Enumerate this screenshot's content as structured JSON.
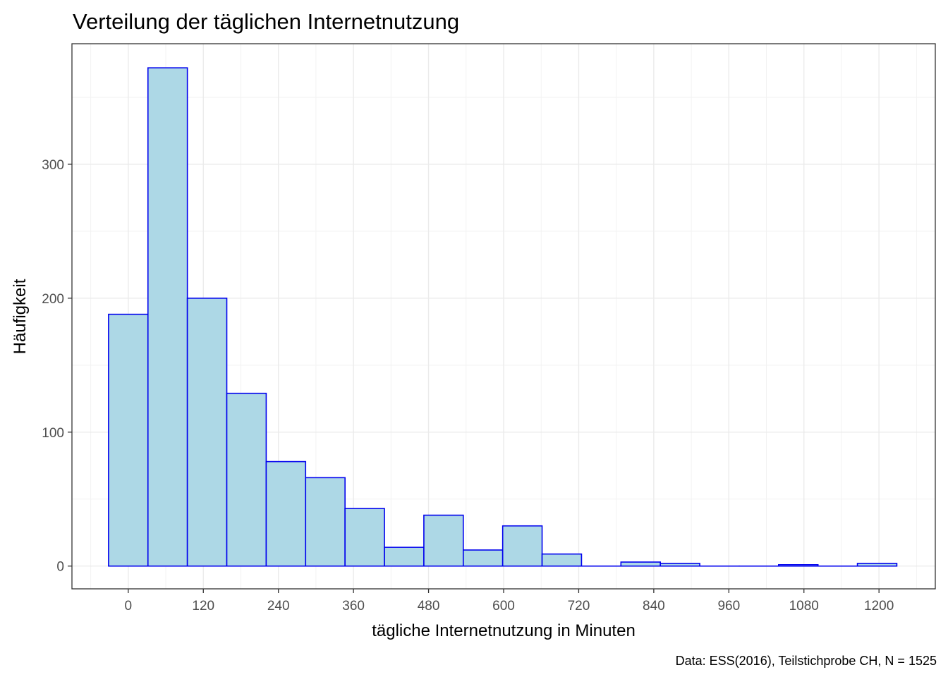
{
  "chart_data": {
    "type": "bar",
    "title": "Verteilung der täglichen Internetnutzung",
    "xlabel": "tägliche Internetnutzung in Minuten",
    "ylabel": "Häufigkeit",
    "caption": "Data: ESS(2016), Teilstichprobe CH, N = 1525",
    "bin_width": 63,
    "bin_centers": [
      0,
      63,
      126,
      189,
      252,
      315,
      378,
      441,
      504,
      567,
      630,
      693,
      756,
      819,
      882,
      945,
      1008,
      1071,
      1134,
      1197
    ],
    "values": [
      188,
      372,
      200,
      129,
      78,
      66,
      43,
      14,
      38,
      12,
      30,
      9,
      0,
      3,
      2,
      0,
      0,
      1,
      0,
      2
    ],
    "xlim": [
      -90,
      1290
    ],
    "ylim": [
      -17,
      390
    ],
    "x_ticks": [
      0,
      120,
      240,
      360,
      480,
      600,
      720,
      840,
      960,
      1080,
      1200
    ],
    "y_ticks": [
      0,
      100,
      200,
      300
    ],
    "fill_color": "#add8e6",
    "outline_color": "#0000ee",
    "grid": true
  }
}
